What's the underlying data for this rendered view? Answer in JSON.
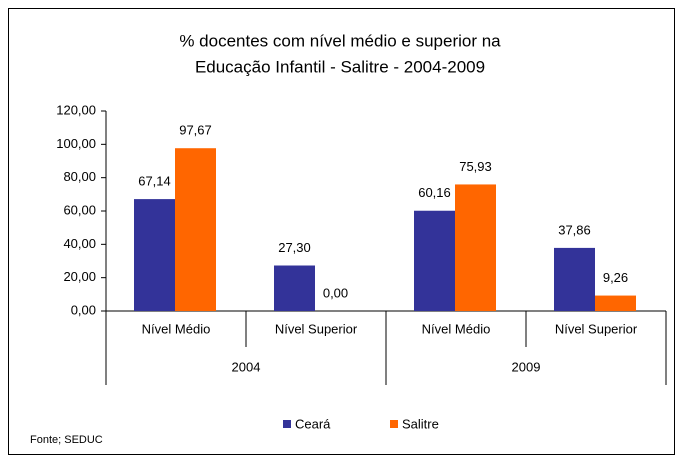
{
  "chart_data": {
    "type": "bar",
    "title": [
      "% docentes com nível médio e superior na",
      "Educação Infantil - Salitre - 2004-2009"
    ],
    "categories": [
      "Nível Médio",
      "Nível Superior",
      "Nível Médio",
      "Nível Superior"
    ],
    "groups": [
      "2004",
      "2009"
    ],
    "series": [
      {
        "name": "Ceará",
        "color": "#333399",
        "values": [
          67.14,
          27.3,
          60.16,
          37.86
        ],
        "value_labels": [
          "67,14",
          "27,30",
          "60,16",
          "37,86"
        ]
      },
      {
        "name": "Salitre",
        "color": "#ff6600",
        "values": [
          97.67,
          0.0,
          75.93,
          9.26
        ],
        "value_labels": [
          "97,67",
          "0,00",
          "75,93",
          "9,26"
        ]
      }
    ],
    "ylim": [
      0,
      120
    ],
    "yticks": [
      {
        "value": 0,
        "label": "0,00"
      },
      {
        "value": 20,
        "label": "20,00"
      },
      {
        "value": 40,
        "label": "40,00"
      },
      {
        "value": 60,
        "label": "60,00"
      },
      {
        "value": 80,
        "label": "80,00"
      },
      {
        "value": 100,
        "label": "100,00"
      },
      {
        "value": 120,
        "label": "120,00"
      }
    ],
    "source": "Fonte; SEDUC"
  }
}
